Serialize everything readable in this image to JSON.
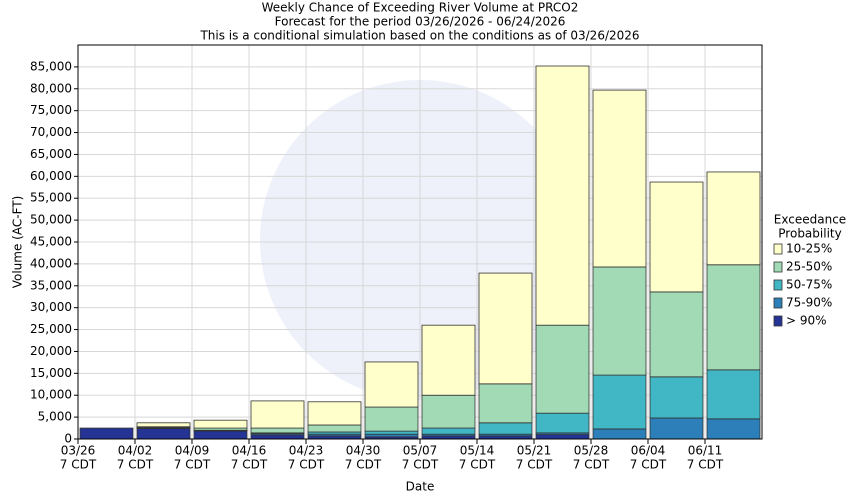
{
  "chart_data": {
    "type": "stacked_bar",
    "title": [
      "Weekly Chance of Exceeding River Volume at PRCO2",
      "Forecast for the period 03/26/2026 - 06/24/2026",
      "This is a conditional simulation based on the conditions as of 03/26/2026"
    ],
    "x_label": "Date",
    "y_label": "Volume (AC-FT)",
    "categories": [
      [
        "03/26",
        "7 CDT"
      ],
      [
        "04/02",
        "7 CDT"
      ],
      [
        "04/09",
        "7 CDT"
      ],
      [
        "04/16",
        "7 CDT"
      ],
      [
        "04/23",
        "7 CDT"
      ],
      [
        "04/30",
        "7 CDT"
      ],
      [
        "05/07",
        "7 CDT"
      ],
      [
        "05/14",
        "7 CDT"
      ],
      [
        "05/21",
        "7 CDT"
      ],
      [
        "05/28",
        "7 CDT"
      ],
      [
        "06/04",
        "7 CDT"
      ],
      [
        "06/11",
        "7 CDT"
      ]
    ],
    "series": [
      {
        "name": "> 90%",
        "color": "#253494",
        "values": [
          2500,
          2400,
          1800,
          900,
          700,
          500,
          700,
          700,
          1000,
          0,
          0,
          0
        ]
      },
      {
        "name": "75-90%",
        "color": "#2c7fb8",
        "values": [
          0,
          100,
          100,
          300,
          400,
          600,
          400,
          400,
          400,
          2300,
          4800,
          4600
        ]
      },
      {
        "name": "50-75%",
        "color": "#41b6c4",
        "values": [
          0,
          100,
          100,
          200,
          500,
          700,
          1400,
          2600,
          4500,
          12300,
          9400,
          11200
        ]
      },
      {
        "name": "25-50%",
        "color": "#a1dab4",
        "values": [
          0,
          200,
          500,
          1100,
          1600,
          5500,
          7500,
          8900,
          20100,
          24700,
          19400,
          24000
        ]
      },
      {
        "name": "10-25%",
        "color": "#ffffcc",
        "values": [
          0,
          900,
          1800,
          6200,
          5300,
          10300,
          16000,
          25300,
          59200,
          40400,
          25100,
          21200
        ]
      }
    ],
    "legend_title": [
      "Exceedance",
      "Probability"
    ],
    "legend": "right",
    "grid": true,
    "ylim": [
      0,
      90000
    ],
    "yticks": [
      0,
      {
        "value": 5000,
        "label": "5,000"
      },
      {
        "value": 10000,
        "label": "10,000"
      },
      {
        "value": 15000,
        "label": "15,000"
      },
      {
        "value": 20000,
        "label": "20,000"
      },
      {
        "value": 25000,
        "label": "25,000"
      },
      {
        "value": 30000,
        "label": "30,000"
      },
      {
        "value": 35000,
        "label": "35,000"
      },
      {
        "value": 40000,
        "label": "40,000"
      },
      {
        "value": 45000,
        "label": "45,000"
      },
      {
        "value": 50000,
        "label": "50,000"
      },
      {
        "value": 55000,
        "label": "55,000"
      },
      {
        "value": 60000,
        "label": "60,000"
      },
      {
        "value": 65000,
        "label": "65,000"
      },
      {
        "value": 70000,
        "label": "70,000"
      },
      {
        "value": 75000,
        "label": "75,000"
      },
      {
        "value": 80000,
        "label": "80,000"
      },
      {
        "value": 85000,
        "label": "85,000"
      }
    ]
  }
}
